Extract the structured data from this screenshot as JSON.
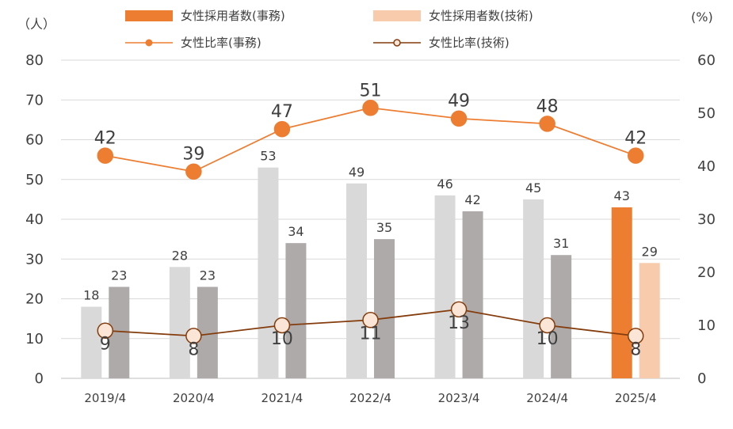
{
  "chart_data": {
    "type": "bar+line",
    "categories": [
      "2019/4",
      "2020/4",
      "2021/4",
      "2022/4",
      "2023/4",
      "2024/4",
      "2025/4"
    ],
    "left_axis": {
      "unit": "（人）",
      "ylim": [
        0,
        80
      ],
      "ticks": [
        0,
        10,
        20,
        30,
        40,
        50,
        60,
        70,
        80
      ]
    },
    "right_axis": {
      "unit": "(%)",
      "ylim": [
        0,
        60
      ],
      "ticks": [
        0,
        10,
        20,
        30,
        40,
        50,
        60
      ]
    },
    "bar_series": [
      {
        "name": "女性採用者数(事務)",
        "values": [
          18,
          28,
          53,
          49,
          46,
          45,
          43
        ],
        "color": "#d9d9d9",
        "highlight_color": "#ed7d31",
        "legend_color": "#ed7d31"
      },
      {
        "name": "女性採用者数(技術)",
        "values": [
          23,
          23,
          34,
          35,
          42,
          31,
          29
        ],
        "color": "#aeaaaa",
        "highlight_color": "#f8cbad",
        "legend_color": "#f8cbad"
      }
    ],
    "line_series": [
      {
        "name": "女性比率(事務)",
        "values": [
          42,
          39,
          47,
          51,
          49,
          48,
          42
        ],
        "axis": "right",
        "color": "#ed7d31",
        "marker_fill": "#ed7d31"
      },
      {
        "name": "女性比率(技術)",
        "values": [
          9,
          8,
          10,
          11,
          13,
          10,
          8
        ],
        "axis": "right",
        "color": "#843c0c",
        "marker_fill": "#fbe5d6"
      }
    ],
    "highlight_category_index": 6,
    "legend_position": "top",
    "grid": true
  }
}
